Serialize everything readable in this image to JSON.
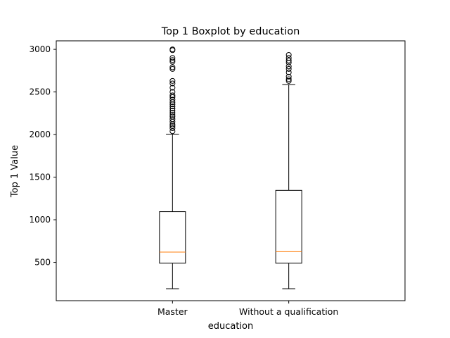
{
  "chart_data": {
    "type": "box",
    "title": "Top 1 Boxplot by education",
    "xlabel": "education",
    "ylabel": "Top 1 Value",
    "ylim": [
      50,
      3100
    ],
    "yticks": [
      500,
      1000,
      1500,
      2000,
      2500,
      3000
    ],
    "categories": [
      "Master",
      "Without a qualification"
    ],
    "boxes": [
      {
        "category": "Master",
        "whisker_low": 190,
        "q1": 490,
        "median": 620,
        "q3": 1095,
        "whisker_high": 2005,
        "outliers": [
          2040,
          2075,
          2100,
          2120,
          2150,
          2180,
          2210,
          2230,
          2255,
          2280,
          2305,
          2330,
          2355,
          2380,
          2410,
          2440,
          2460,
          2500,
          2550,
          2600,
          2630,
          2770,
          2790,
          2855,
          2875,
          2900,
          2990,
          3000
        ]
      },
      {
        "category": "Without a qualification",
        "whisker_low": 190,
        "q1": 490,
        "median": 625,
        "q3": 1345,
        "whisker_high": 2585,
        "outliers": [
          2630,
          2650,
          2680,
          2730,
          2770,
          2800,
          2845,
          2870,
          2900,
          2935
        ]
      }
    ],
    "colors": {
      "median": "#ff7f0e",
      "box": "#000000",
      "outlier_edge": "#000000"
    }
  }
}
